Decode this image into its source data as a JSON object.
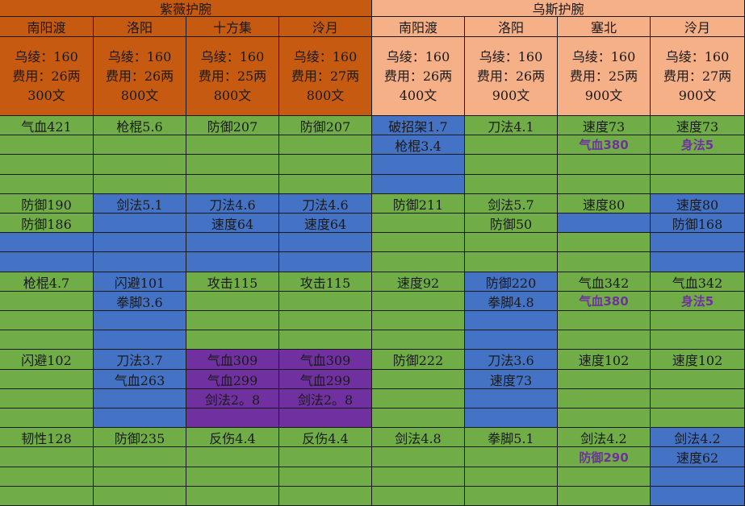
{
  "groups": [
    {
      "title": "紫薇护腕"
    },
    {
      "title": "乌斯护腕"
    }
  ],
  "columns": [
    {
      "city": "南阳渡",
      "line1": "乌绫：160",
      "line2": "费用：26两",
      "line3": "300文"
    },
    {
      "city": "洛阳",
      "line1": "乌绫：160",
      "line2": "费用：26两",
      "line3": "800文"
    },
    {
      "city": "十方集",
      "line1": "乌绫：160",
      "line2": "费用：25两",
      "line3": "800文"
    },
    {
      "city": "泠月",
      "line1": "乌绫：160",
      "line2": "费用：27两",
      "line3": "800文"
    },
    {
      "city": "南阳渡",
      "line1": "乌绫：160",
      "line2": "费用：26两",
      "line3": "400文"
    },
    {
      "city": "洛阳",
      "line1": "乌绫：160",
      "line2": "费用：26两",
      "line3": "900文"
    },
    {
      "city": "塞北",
      "line1": "乌绫：160",
      "line2": "费用：25两",
      "line3": "900文"
    },
    {
      "city": "泠月",
      "line1": "乌绫：160",
      "line2": "费用：27两",
      "line3": "900文"
    }
  ],
  "rows": [
    [
      "气血421",
      "枪棍5.6",
      "防御207",
      "防御207",
      "破招架1.7",
      "刀法4.1",
      "速度73",
      "速度73"
    ],
    [
      "",
      "",
      "",
      "",
      "枪棍3.4",
      "",
      "气血380",
      "身法5"
    ],
    [
      "",
      "",
      "",
      "",
      "",
      "",
      "",
      ""
    ],
    [
      "",
      "",
      "",
      "",
      "",
      "",
      "",
      ""
    ],
    [
      "防御190",
      "剑法5.1",
      "刀法4.6",
      "刀法4.6",
      "防御211",
      "剑法5.7",
      "速度80",
      "速度80"
    ],
    [
      "防御186",
      "",
      "速度64",
      "速度64",
      "",
      "防御50",
      "",
      "防御168"
    ],
    [
      "",
      "",
      "",
      "",
      "",
      "",
      "",
      ""
    ],
    [
      "",
      "",
      "",
      "",
      "",
      "",
      "",
      ""
    ],
    [
      "枪棍4.7",
      "闪避101",
      "攻击115",
      "攻击115",
      "速度92",
      "防御220",
      "气血342",
      "气血342"
    ],
    [
      "",
      "拳脚3.6",
      "",
      "",
      "",
      "拳脚4.8",
      "气血380",
      "身法5"
    ],
    [
      "",
      "",
      "",
      "",
      "",
      "",
      "",
      ""
    ],
    [
      "",
      "",
      "",
      "",
      "",
      "",
      "",
      ""
    ],
    [
      "闪避102",
      "刀法3.7",
      "气血309",
      "气血309",
      "防御222",
      "刀法3.6",
      "速度102",
      "速度102"
    ],
    [
      "",
      "气血263",
      "气血299",
      "气血299",
      "",
      "速度73",
      "",
      ""
    ],
    [
      "",
      "",
      "剑法2。8",
      "剑法2。8",
      "",
      "",
      "",
      ""
    ],
    [
      "",
      "",
      "",
      "",
      "",
      "",
      "",
      ""
    ],
    [
      "韧性128",
      "防御235",
      "反伤4.4",
      "反伤4.4",
      "剑法4.8",
      "拳脚5.1",
      "剑法4.2",
      "剑法4.2"
    ],
    [
      "",
      "",
      "",
      "",
      "",
      "",
      "防御290",
      "速度62"
    ],
    [
      "",
      "",
      "",
      "",
      "",
      "",
      "",
      ""
    ],
    [
      "",
      "",
      "",
      "",
      "",
      "",
      "",
      ""
    ]
  ],
  "fills": [
    "gggg bggg",
    "gggg bggg",
    "gggg bggg",
    "gggg bggg",
    "gbbb gggb",
    "gbbb ggbb",
    "bbbb gggb",
    "bbbb gggb",
    "gbgg gbgg",
    "gbgg gbgg",
    "gbgg gbgg",
    "gbgg gbgg",
    "gbpp gbgg",
    "gbpp gbgg",
    "gbpp gbgg",
    "gbpp gbgg",
    "gggg gggb",
    "gggg gggb",
    "gggg gggb",
    "gggg gggb"
  ],
  "highlight_cells": [
    {
      "row": 1,
      "col": 6
    },
    {
      "row": 1,
      "col": 7
    },
    {
      "row": 9,
      "col": 6
    },
    {
      "row": 9,
      "col": 7
    },
    {
      "row": 17,
      "col": 6
    }
  ],
  "colors": {
    "header_left": "#c65a10",
    "header_right": "#f5b088",
    "green": "#70ad47",
    "blue": "#4472c4",
    "purple": "#7030a0"
  }
}
